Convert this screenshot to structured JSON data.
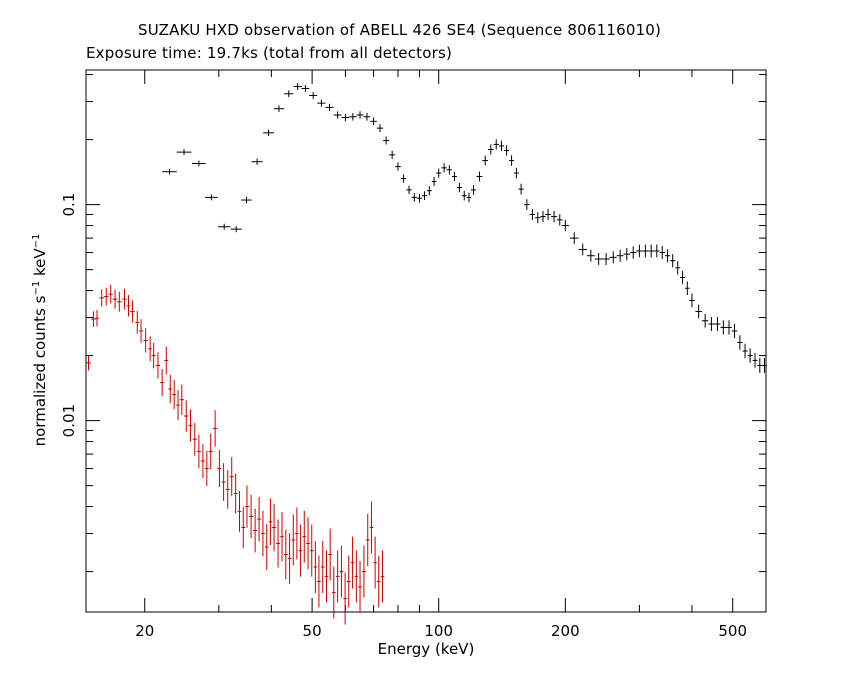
{
  "chart_data": {
    "type": "scatter",
    "title": "SUZAKU HXD observation of ABELL 426 SE4 (Sequence 806116010)",
    "subtitle": "Exposure time: 19.7ks (total from all detectors)",
    "xlabel": "Energy (keV)",
    "ylabel": {
      "base": "normalized counts s",
      "exp1": "−1",
      "mid": " keV",
      "exp2": "−1"
    },
    "x_scale": "log",
    "y_scale": "log",
    "xlim": [
      14.5,
      600
    ],
    "ylim": [
      0.0013,
      0.42
    ],
    "x_ticks": [
      {
        "value": 20,
        "label": "20"
      },
      {
        "value": 50,
        "label": "50"
      },
      {
        "value": 100,
        "label": "100"
      },
      {
        "value": 200,
        "label": "200"
      },
      {
        "value": 500,
        "label": "500"
      }
    ],
    "y_ticks": [
      {
        "value": 0.01,
        "label": "0.01"
      },
      {
        "value": 0.1,
        "label": "0.1"
      }
    ],
    "grid": false,
    "colors": {
      "series_gso": "#000000",
      "series_pin": "#cc0000",
      "axes": "#000000"
    },
    "series": [
      {
        "color": "#000000",
        "x": [
          22.9,
          24.8,
          26.9,
          28.8,
          30.9,
          33.0,
          34.9,
          37.0,
          39.4,
          41.7,
          44.0,
          46.2,
          48.2,
          50.3,
          52.6,
          55.0,
          57.5,
          60.0,
          62.5,
          65.0,
          67.5,
          70.0,
          72.5,
          75.0,
          77.5,
          80.0,
          82.5,
          85.0,
          87.5,
          90.0,
          92.5,
          95.0,
          97.5,
          100.0,
          103.0,
          106.0,
          109.0,
          112.0,
          115.0,
          118.0,
          121.0,
          125.0,
          129.0,
          133.0,
          137.0,
          141.0,
          145.0,
          149.0,
          153.0,
          157.0,
          162.0,
          167.0,
          172.0,
          177.0,
          182.0,
          188.0,
          194.0,
          200.0,
          210.0,
          220.0,
          230.0,
          240.0,
          250.0,
          260.0,
          270.0,
          280.0,
          290.0,
          300.0,
          310.0,
          320.0,
          330.0,
          340.0,
          350.0,
          360.0,
          370.0,
          380.0,
          390.0,
          400.0,
          415.0,
          430.0,
          445.0,
          460.0,
          475.0,
          490.0,
          505.0,
          520.0,
          535.0,
          550.0,
          565.0,
          580.0,
          595.0
        ],
        "y": [
          0.142,
          0.175,
          0.155,
          0.108,
          0.079,
          0.077,
          0.105,
          0.158,
          0.215,
          0.278,
          0.326,
          0.352,
          0.345,
          0.32,
          0.295,
          0.282,
          0.26,
          0.253,
          0.255,
          0.26,
          0.255,
          0.243,
          0.226,
          0.198,
          0.17,
          0.15,
          0.132,
          0.117,
          0.108,
          0.107,
          0.11,
          0.116,
          0.128,
          0.14,
          0.148,
          0.145,
          0.135,
          0.12,
          0.11,
          0.108,
          0.117,
          0.135,
          0.16,
          0.18,
          0.19,
          0.187,
          0.178,
          0.16,
          0.14,
          0.118,
          0.1,
          0.09,
          0.087,
          0.088,
          0.09,
          0.088,
          0.085,
          0.08,
          0.07,
          0.062,
          0.058,
          0.056,
          0.056,
          0.057,
          0.058,
          0.059,
          0.06,
          0.061,
          0.061,
          0.061,
          0.061,
          0.06,
          0.058,
          0.055,
          0.051,
          0.046,
          0.041,
          0.036,
          0.032,
          0.029,
          0.028,
          0.028,
          0.027,
          0.027,
          0.026,
          0.023,
          0.021,
          0.02,
          0.019,
          0.018,
          0.018
        ]
      },
      {
        "color": "#cc0000",
        "x": [
          14.7,
          15.1,
          15.4,
          15.8,
          16.2,
          16.6,
          17.0,
          17.4,
          17.9,
          18.3,
          18.7,
          19.2,
          19.6,
          20.1,
          20.6,
          21.0,
          21.5,
          22.0,
          22.5,
          23.0,
          23.5,
          24.0,
          24.5,
          25.1,
          25.7,
          26.3,
          26.9,
          27.5,
          28.1,
          28.7,
          29.4,
          30.1,
          30.8,
          31.5,
          32.2,
          32.9,
          33.6,
          34.3,
          35.0,
          35.8,
          36.6,
          37.4,
          38.2,
          39.0,
          39.8,
          40.6,
          41.5,
          42.4,
          43.3,
          44.2,
          45.1,
          46.0,
          46.9,
          47.9,
          48.9,
          49.9,
          50.9,
          51.9,
          53.0,
          54.1,
          55.2,
          56.3,
          57.5,
          58.7,
          59.9,
          61.1,
          62.4,
          63.7,
          65.0,
          66.4,
          67.8,
          69.2,
          70.6,
          72.0,
          73.5
        ],
        "y": [
          0.0185,
          0.0295,
          0.0298,
          0.037,
          0.0375,
          0.0385,
          0.0365,
          0.0355,
          0.0365,
          0.034,
          0.032,
          0.0285,
          0.026,
          0.0235,
          0.0215,
          0.02,
          0.018,
          0.015,
          0.019,
          0.014,
          0.0132,
          0.0118,
          0.0125,
          0.0105,
          0.0095,
          0.0082,
          0.0072,
          0.0065,
          0.006,
          0.0072,
          0.0092,
          0.006,
          0.0052,
          0.0048,
          0.0055,
          0.0046,
          0.0038,
          0.0032,
          0.004,
          0.0036,
          0.0031,
          0.0035,
          0.003,
          0.0026,
          0.0034,
          0.0032,
          0.0027,
          0.0029,
          0.0024,
          0.0023,
          0.0028,
          0.003,
          0.0025,
          0.0029,
          0.0027,
          0.0025,
          0.0021,
          0.0018,
          0.0021,
          0.0019,
          0.0024,
          0.0016,
          0.0019,
          0.002,
          0.0015,
          0.0018,
          0.0022,
          0.0019,
          0.0017,
          0.002,
          0.0028,
          0.0032,
          0.0022,
          0.0018,
          0.0019
        ]
      }
    ]
  }
}
